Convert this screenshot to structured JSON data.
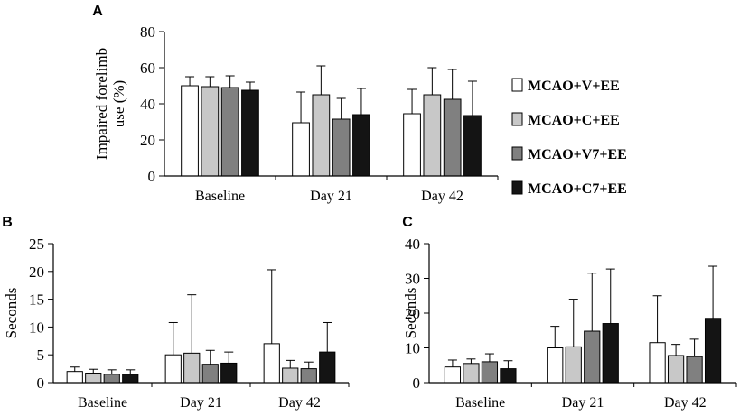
{
  "series_colors": [
    "#ffffff",
    "#c8c8c8",
    "#808080",
    "#141414"
  ],
  "legend": {
    "entries": [
      "MCAO+V+EE",
      "MCAO+C+EE",
      "MCAO+V7+EE",
      "MCAO+C7+EE"
    ]
  },
  "chart_data": [
    {
      "panel": "A",
      "type": "bar",
      "ylabel": "Impaired forelimb use (%)",
      "ylabel_lines": [
        "Impaired forelimb",
        "use (%)"
      ],
      "ylim": [
        0,
        80
      ],
      "yticks": [
        0,
        20,
        40,
        60,
        80
      ],
      "categories": [
        "Baseline",
        "Day 21",
        "Day 42"
      ],
      "series": [
        {
          "name": "MCAO+V+EE",
          "values": [
            50,
            29.5,
            34.5
          ],
          "errors": [
            5,
            17,
            13.5
          ]
        },
        {
          "name": "MCAO+C+EE",
          "values": [
            49.5,
            45,
            45
          ],
          "errors": [
            5.5,
            16,
            15
          ]
        },
        {
          "name": "MCAO+V7+EE",
          "values": [
            49,
            31.5,
            42.5
          ],
          "errors": [
            6.5,
            11.5,
            16.5
          ]
        },
        {
          "name": "MCAO+C7+EE",
          "values": [
            47.5,
            34,
            33.5
          ],
          "errors": [
            4.5,
            14.5,
            19
          ]
        }
      ]
    },
    {
      "panel": "B",
      "type": "bar",
      "ylabel": "Seconds",
      "ylim": [
        0,
        25
      ],
      "yticks": [
        0,
        5,
        10,
        15,
        20,
        25
      ],
      "categories": [
        "Baseline",
        "Day 21",
        "Day 42"
      ],
      "series": [
        {
          "name": "MCAO+V+EE",
          "values": [
            2,
            5,
            7
          ],
          "errors": [
            0.8,
            5.8,
            13.3
          ]
        },
        {
          "name": "MCAO+C+EE",
          "values": [
            1.7,
            5.3,
            2.6
          ],
          "errors": [
            0.7,
            10.5,
            1.4
          ]
        },
        {
          "name": "MCAO+V7+EE",
          "values": [
            1.5,
            3.3,
            2.5
          ],
          "errors": [
            0.8,
            2.5,
            1.2
          ]
        },
        {
          "name": "MCAO+C7+EE",
          "values": [
            1.5,
            3.5,
            5.5
          ],
          "errors": [
            0.8,
            2,
            5.3
          ]
        }
      ]
    },
    {
      "panel": "C",
      "type": "bar",
      "ylabel": "Seconds",
      "ylim": [
        0,
        40
      ],
      "yticks": [
        0,
        10,
        20,
        30,
        40
      ],
      "categories": [
        "Baseline",
        "Day 21",
        "Day 42"
      ],
      "series": [
        {
          "name": "MCAO+V+EE",
          "values": [
            4.5,
            10,
            11.5
          ],
          "errors": [
            2,
            6.2,
            13.5
          ]
        },
        {
          "name": "MCAO+C+EE",
          "values": [
            5.5,
            10.3,
            7.8
          ],
          "errors": [
            1.3,
            13.7,
            3.2
          ]
        },
        {
          "name": "MCAO+V7+EE",
          "values": [
            6,
            14.8,
            7.5
          ],
          "errors": [
            2.3,
            16.7,
            5
          ]
        },
        {
          "name": "MCAO+C7+EE",
          "values": [
            4,
            17,
            18.5
          ],
          "errors": [
            2.3,
            15.7,
            15
          ]
        }
      ]
    }
  ]
}
